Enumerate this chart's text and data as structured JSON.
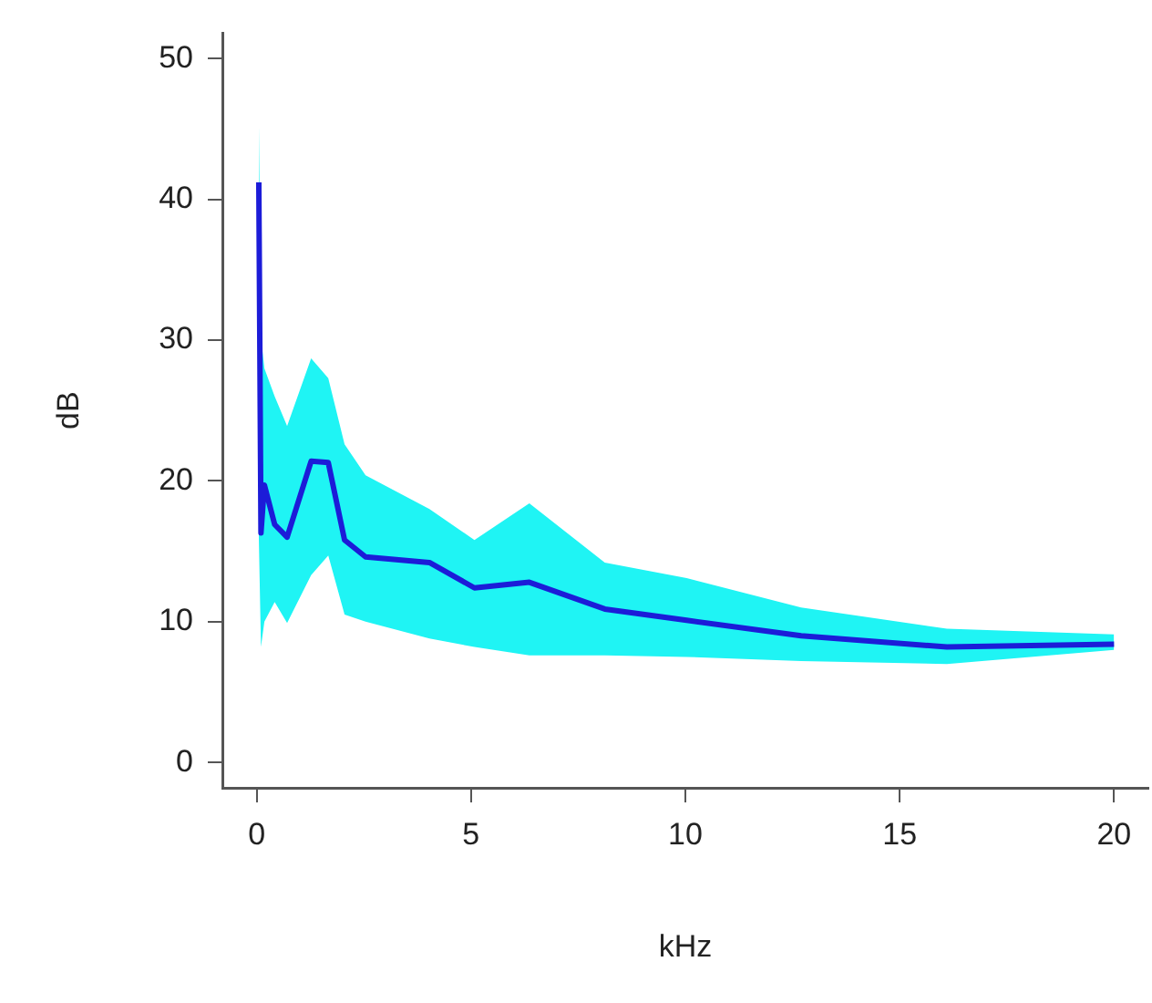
{
  "chart_data": {
    "type": "line",
    "xlabel": "kHz",
    "ylabel": "dB",
    "x": [
      0.05,
      0.1,
      0.18,
      0.42,
      0.71,
      1.27,
      1.67,
      2.05,
      2.54,
      4.03,
      5.08,
      6.36,
      8.12,
      10.03,
      12.7,
      16.1,
      20
    ],
    "series": [
      {
        "color": "#1c1cd8",
        "values": [
          41.2,
          16.3,
          19.7,
          16.9,
          16.0,
          21.4,
          21.3,
          15.8,
          14.6,
          14.2,
          12.4,
          12.8,
          10.9,
          10.1,
          9.0,
          8.2,
          8.4
        ],
        "upper": [
          45.4,
          30.2,
          28.0,
          26.0,
          23.9,
          28.7,
          27.3,
          22.6,
          20.4,
          18.0,
          15.8,
          18.4,
          14.2,
          13.1,
          11.0,
          9.5,
          9.1
        ],
        "lower": [
          16.0,
          8.2,
          10.0,
          11.4,
          9.9,
          13.3,
          14.7,
          10.5,
          10.0,
          8.8,
          8.2,
          7.6,
          7.6,
          7.5,
          7.2,
          7.0,
          8.0
        ]
      }
    ],
    "xlim": [
      -0.8,
      20.8
    ],
    "ylim": [
      -1.8,
      51.8
    ],
    "xticks": [
      0,
      5,
      10,
      15,
      20
    ],
    "yticks": [
      0,
      10,
      20,
      30,
      40,
      50
    ],
    "grid": false,
    "legend": false,
    "marker": "none",
    "line_style": "solid"
  }
}
